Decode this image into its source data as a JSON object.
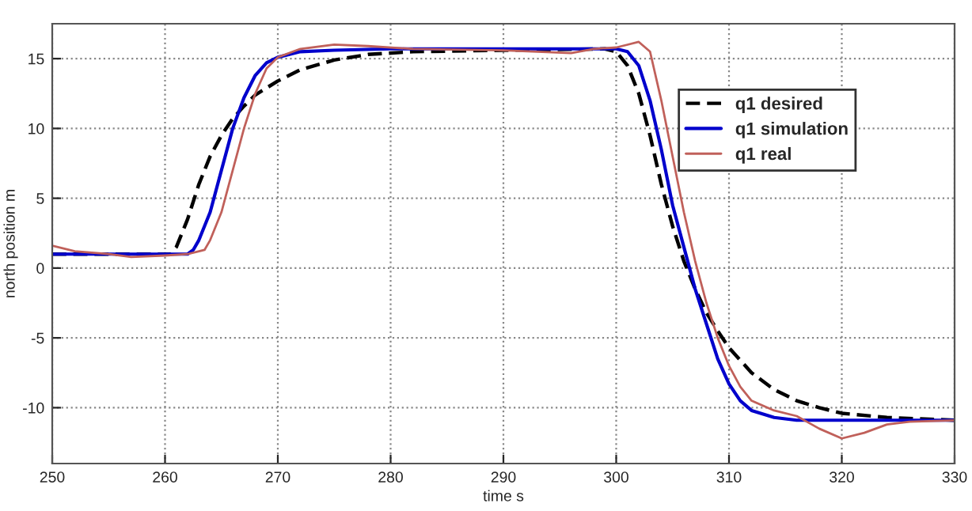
{
  "chart_data": {
    "type": "line",
    "xlabel": "time s",
    "ylabel": "north position m",
    "xlim": [
      250,
      330
    ],
    "xticks": [
      250,
      260,
      270,
      280,
      290,
      300,
      310,
      320,
      330
    ],
    "ylim": [
      -14,
      17.5
    ],
    "yticks": [
      -10,
      -5,
      0,
      5,
      10,
      15
    ],
    "grid": true,
    "legend": "top right",
    "marker": "none",
    "series": [
      {
        "name": "q1 desired",
        "color": "#000000",
        "line_style": "dashed",
        "x": [
          250,
          260.5,
          261,
          262,
          263,
          264,
          265,
          266,
          267,
          268,
          270,
          272,
          275,
          278,
          282,
          290,
          299,
          300,
          301,
          302,
          303,
          304,
          305,
          306,
          307,
          308,
          309,
          310,
          312,
          314,
          316,
          318,
          320,
          324,
          330
        ],
        "values": [
          1.0,
          1.0,
          1.5,
          3.5,
          6,
          8,
          9.5,
          10.7,
          11.6,
          12.4,
          13.4,
          14.2,
          14.9,
          15.3,
          15.5,
          15.6,
          15.7,
          15.5,
          14.5,
          12.5,
          9.5,
          6,
          3,
          0.5,
          -1.5,
          -3.2,
          -4.5,
          -5.7,
          -7.5,
          -8.7,
          -9.5,
          -10,
          -10.4,
          -10.7,
          -10.9
        ]
      },
      {
        "name": "q1 simulation",
        "color": "#0000cc",
        "line_style": "solid",
        "x": [
          250,
          262,
          262.5,
          263,
          264,
          265,
          266,
          267,
          268,
          269,
          270,
          272,
          275,
          280,
          300,
          301,
          302,
          303,
          304,
          305,
          306,
          307,
          308,
          309,
          310,
          311,
          312,
          314,
          316,
          330
        ],
        "values": [
          1.0,
          1.0,
          1.3,
          2,
          4,
          7,
          10,
          12.2,
          13.8,
          14.7,
          15.1,
          15.5,
          15.6,
          15.7,
          15.7,
          15.5,
          14.5,
          12,
          8.5,
          4.5,
          1.5,
          -1.5,
          -4,
          -6.5,
          -8.3,
          -9.5,
          -10.2,
          -10.7,
          -10.9,
          -10.9
        ]
      },
      {
        "name": "q1 real",
        "color": "#c0605a",
        "line_style": "solid",
        "x": [
          250,
          252,
          255,
          257,
          260,
          262,
          263.5,
          264,
          265,
          266,
          267,
          268,
          269,
          270,
          272,
          275,
          278,
          282,
          290,
          296,
          298,
          300,
          301,
          302,
          303,
          304,
          305,
          306,
          307,
          308,
          309,
          310,
          311,
          312,
          314,
          316,
          318,
          320,
          322,
          324,
          326,
          330
        ],
        "values": [
          1.6,
          1.2,
          1.0,
          0.8,
          0.9,
          1.0,
          1.3,
          2,
          4,
          7,
          10,
          12.5,
          14.3,
          15.1,
          15.7,
          16.0,
          15.9,
          15.7,
          15.6,
          15.4,
          15.7,
          15.8,
          16.0,
          16.2,
          15.5,
          12,
          8,
          4,
          0.5,
          -2.5,
          -5,
          -7,
          -8.5,
          -9.5,
          -10.2,
          -10.6,
          -11.5,
          -12.2,
          -11.8,
          -11.2,
          -11.0,
          -10.9
        ]
      }
    ]
  }
}
